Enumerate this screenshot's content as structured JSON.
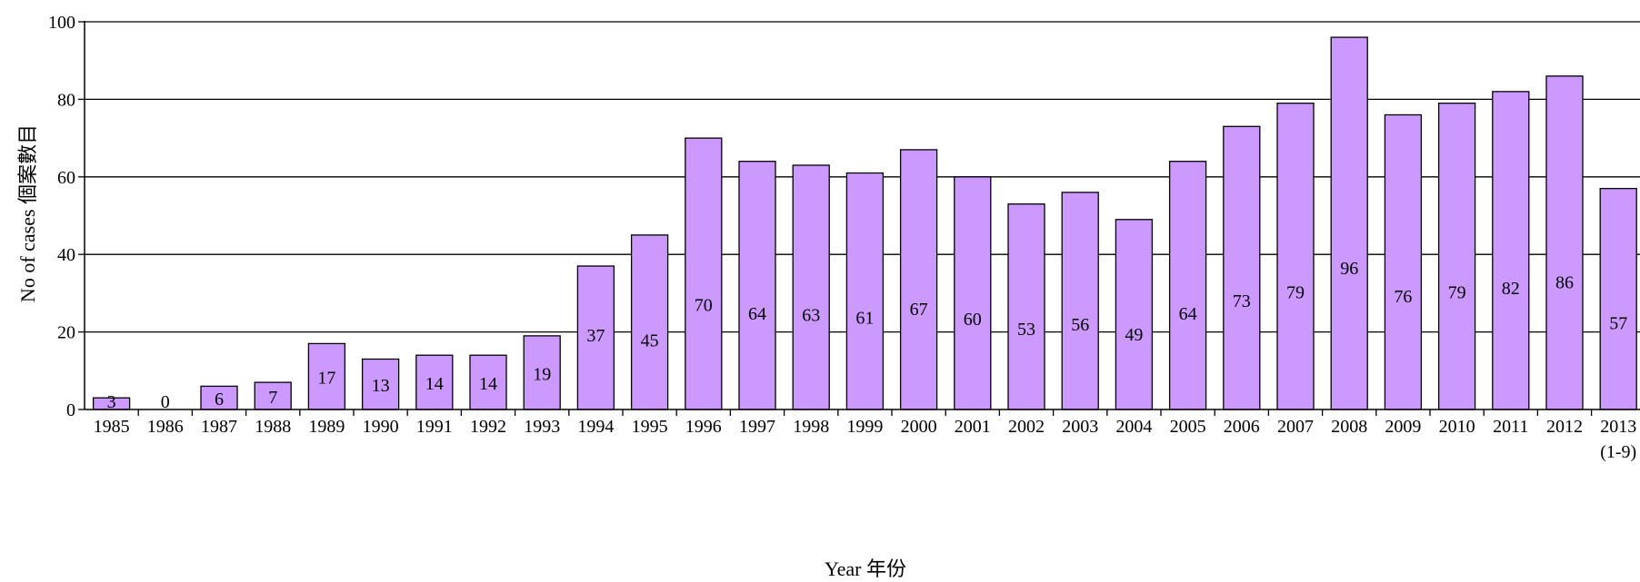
{
  "chart_data": {
    "type": "bar",
    "categories": [
      "1985",
      "1986",
      "1987",
      "1988",
      "1989",
      "1990",
      "1991",
      "1992",
      "1993",
      "1994",
      "1995",
      "1996",
      "1997",
      "1998",
      "1999",
      "2000",
      "2001",
      "2002",
      "2003",
      "2004",
      "2005",
      "2006",
      "2007",
      "2008",
      "2009",
      "2010",
      "2011",
      "2012",
      "2013"
    ],
    "category_sublabels": {
      "2013": "(1-9)"
    },
    "values": [
      3,
      0,
      6,
      7,
      17,
      13,
      14,
      14,
      19,
      37,
      45,
      70,
      64,
      63,
      61,
      67,
      60,
      53,
      56,
      49,
      64,
      73,
      79,
      96,
      76,
      79,
      82,
      86,
      57
    ],
    "xlabel": "Year 年份",
    "ylabel": "No of cases  個案數目",
    "ylim": [
      0,
      100
    ],
    "yticks": [
      0,
      20,
      40,
      60,
      80,
      100
    ],
    "grid": "horizontal",
    "bar_color": "#cc99ff",
    "bar_edge_color": "#000000"
  }
}
